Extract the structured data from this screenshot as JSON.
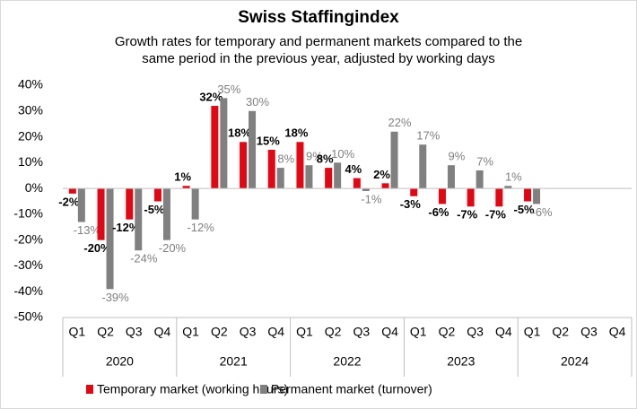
{
  "chart_data": {
    "type": "bar",
    "title": "Swiss Staffingindex",
    "subtitle": [
      "Growth rates for temporary and permanent markets compared to the",
      "same period in the previous year, adjusted by working days"
    ],
    "categories": [
      "Q1",
      "Q2",
      "Q3",
      "Q4",
      "Q1",
      "Q2",
      "Q3",
      "Q4",
      "Q1",
      "Q2",
      "Q3",
      "Q4",
      "Q1",
      "Q2",
      "Q3",
      "Q4",
      "Q1",
      "Q2",
      "Q3",
      "Q4"
    ],
    "year_groups": [
      "2020",
      "2021",
      "2022",
      "2023",
      "2024"
    ],
    "series": [
      {
        "name": "Temporary market (working hours)",
        "color": "#e30613",
        "values": [
          -2,
          -20,
          -12,
          -5,
          1,
          32,
          18,
          15,
          18,
          8,
          4,
          2,
          -3,
          -6,
          -7,
          -7,
          -5,
          null,
          null,
          null
        ],
        "value_labels": [
          "-2%",
          "-20%",
          "-12%",
          "-5%",
          "1%",
          "32%",
          "18%",
          "15%",
          "18%",
          "8%",
          "4%",
          "2%",
          "-3%",
          "-6%",
          "-7%",
          "-7%",
          "-5%",
          null,
          null,
          null
        ]
      },
      {
        "name": "Permanent market (turnover)",
        "color": "#808080",
        "values": [
          -13,
          -39,
          -24,
          -20,
          -12,
          35,
          30,
          8,
          9,
          10,
          -1,
          22,
          17,
          9,
          7,
          1,
          -6,
          null,
          null,
          null
        ],
        "value_labels": [
          "-13%",
          "-39%",
          "-24%",
          "-20%",
          "-12%",
          "35%",
          "30%",
          "8%",
          "9%",
          "10%",
          "-1%",
          "22%",
          "17%",
          "9%",
          "7%",
          "1%",
          "-6%",
          null,
          null,
          null
        ]
      }
    ],
    "ylim": [
      -50,
      40
    ],
    "yticks": [
      {
        "value": -50,
        "label": "-50%"
      },
      {
        "value": -40,
        "label": "-40%"
      },
      {
        "value": -30,
        "label": "-30%"
      },
      {
        "value": -20,
        "label": "-20%"
      },
      {
        "value": -10,
        "label": "-10%"
      },
      {
        "value": 0,
        "label": "0%"
      },
      {
        "value": 10,
        "label": "10%"
      },
      {
        "value": 20,
        "label": "20%"
      },
      {
        "value": 30,
        "label": "30%"
      },
      {
        "value": 40,
        "label": "40%"
      }
    ],
    "grid": false
  }
}
